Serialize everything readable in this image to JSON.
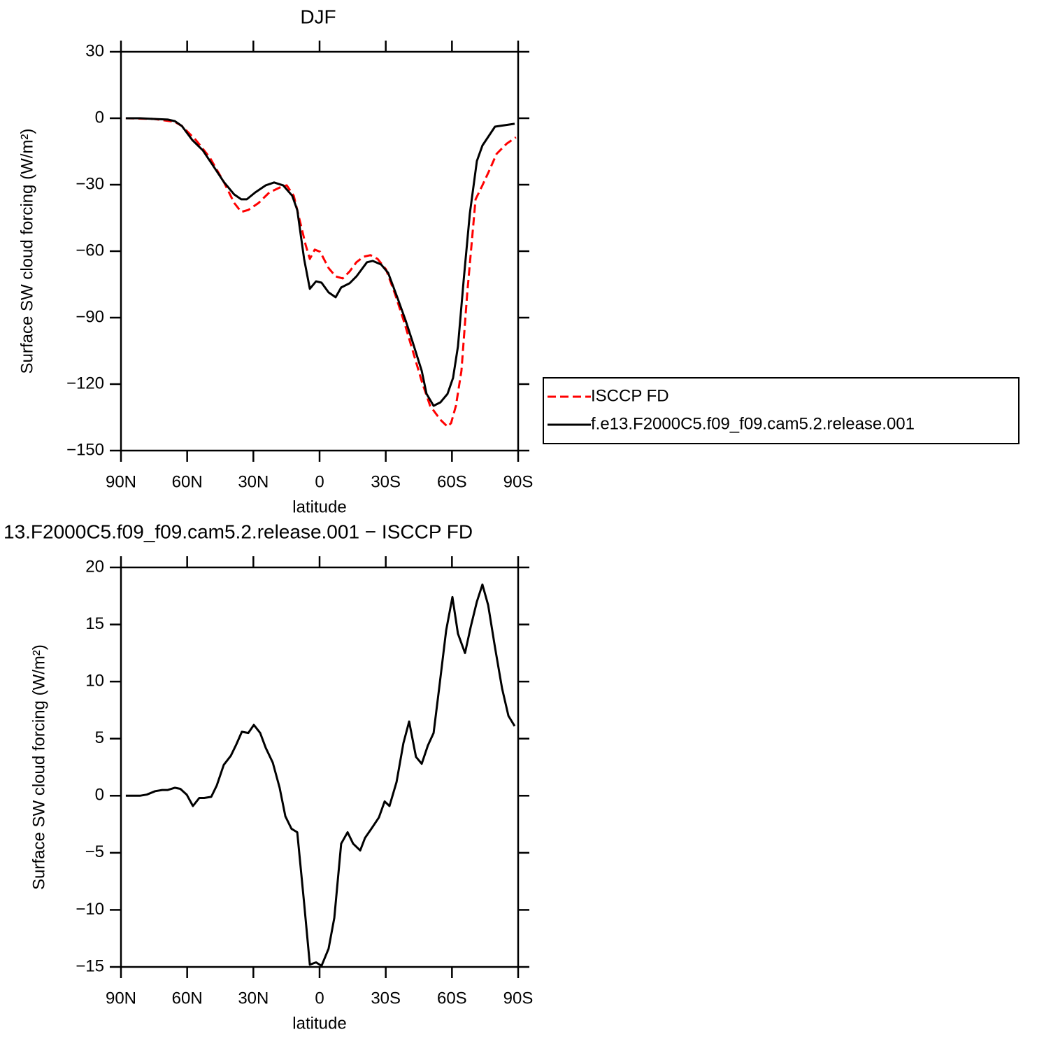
{
  "chart_data": [
    {
      "type": "line",
      "title": "DJF",
      "xlabel": "latitude",
      "ylabel": "Surface SW cloud forcing (W/m²)",
      "xlim": [
        90,
        -90
      ],
      "xticks": [
        {
          "value": 90,
          "label": "90N"
        },
        {
          "value": 60,
          "label": "60N"
        },
        {
          "value": 30,
          "label": "30N"
        },
        0,
        {
          "value": -30,
          "label": "30S"
        },
        {
          "value": -60,
          "label": "60S"
        },
        {
          "value": -90,
          "label": "90S"
        }
      ],
      "ylim": [
        -150,
        30
      ],
      "yticks": [
        {
          "value": -150,
          "label": "−150"
        },
        {
          "value": -120,
          "label": "−120"
        },
        {
          "value": -90,
          "label": "−90"
        },
        {
          "value": -60,
          "label": "−60"
        },
        {
          "value": -30,
          "label": "−30"
        },
        0,
        30
      ],
      "legend": "right",
      "series": [
        {
          "name": "ISCCP FD",
          "color": "#ff0000",
          "line_style": "dashed",
          "x": [
            87.8,
            75.1,
            65.6,
            62.4,
            56.1,
            49.8,
            43.4,
            38.7,
            35.5,
            32.3,
            27.6,
            22.8,
            18.1,
            14.9,
            11.7,
            8.6,
            6.3,
            4.4,
            2.2,
            -0.3,
            -4.1,
            -7.3,
            -10.5,
            -13.6,
            -16.7,
            -19.9,
            -23.1,
            -26.3,
            -30.1,
            -34.2,
            -38.3,
            -42.1,
            -46.3,
            -50.1,
            -54.8,
            -58.0,
            -59.6,
            -61.8,
            -64.3,
            -66.9,
            -70.7,
            -73.8,
            -77.0,
            -80.2,
            -84.9,
            -89.0
          ],
          "values": [
            0,
            -0.3,
            -1.6,
            -3.5,
            -9.8,
            -17.7,
            -28.7,
            -38.2,
            -42.3,
            -41.4,
            -38.2,
            -33.5,
            -31.3,
            -30.3,
            -35,
            -47.7,
            -57.2,
            -63.5,
            -59.3,
            -60.3,
            -67.6,
            -71.4,
            -72.3,
            -69.2,
            -65,
            -62.5,
            -61.8,
            -63.5,
            -68.2,
            -79.3,
            -91.9,
            -104.5,
            -118.7,
            -129.8,
            -136.1,
            -139.2,
            -137.6,
            -129.8,
            -114,
            -79.3,
            -36.6,
            -30.3,
            -23.4,
            -16.1,
            -11.4,
            -8.6
          ]
        },
        {
          "name": "f.e13.F2000C5.f09_f09.cam5.2.release.001",
          "color": "#000000",
          "line_style": "solid",
          "x": [
            87.8,
            81.4,
            75.1,
            68.8,
            65.6,
            62.4,
            57.7,
            52.9,
            48.2,
            43.4,
            38.7,
            35.5,
            33.0,
            29.2,
            24.4,
            20.6,
            16.5,
            12.4,
            10.1,
            7.0,
            4.4,
            1.6,
            -0.9,
            -4.1,
            -7.3,
            -9.8,
            -13.6,
            -16.7,
            -21.5,
            -24.1,
            -27.9,
            -31.1,
            -35.2,
            -39.0,
            -42.1,
            -46.3,
            -48.5,
            -51.7,
            -54.8,
            -58.0,
            -60.5,
            -62.7,
            -65.3,
            -68.1,
            -71.3,
            -73.8,
            -79.5,
            -88.4
          ],
          "values": [
            0,
            0,
            -0.3,
            -0.6,
            -1.3,
            -3.5,
            -9.8,
            -14.5,
            -21.5,
            -28.7,
            -34.4,
            -36.6,
            -36.6,
            -33.5,
            -30.3,
            -29,
            -30.3,
            -35,
            -41.4,
            -63.5,
            -77,
            -73.6,
            -74.2,
            -78.6,
            -80.8,
            -76.4,
            -74.5,
            -71.4,
            -65,
            -64.4,
            -66,
            -69.8,
            -80.8,
            -91.3,
            -100.7,
            -114,
            -124.4,
            -129.8,
            -128.2,
            -124.4,
            -117.2,
            -103,
            -73,
            -43,
            -19.3,
            -12.3,
            -3.8,
            -2.5
          ]
        }
      ]
    },
    {
      "type": "line",
      "title": "13.F2000C5.f09_f09.cam5.2.release.001 − ISCCP FD",
      "xlabel": "latitude",
      "ylabel": "Surface SW cloud forcing (W/m²)",
      "xlim": [
        90,
        -90
      ],
      "xticks": [
        {
          "value": 90,
          "label": "90N"
        },
        {
          "value": 60,
          "label": "60N"
        },
        {
          "value": 30,
          "label": "30N"
        },
        0,
        {
          "value": -30,
          "label": "30S"
        },
        {
          "value": -60,
          "label": "60S"
        },
        {
          "value": -90,
          "label": "90S"
        }
      ],
      "ylim": [
        -15,
        20
      ],
      "yticks": [
        {
          "value": -15,
          "label": "−15"
        },
        {
          "value": -10,
          "label": "−10"
        },
        {
          "value": -5,
          "label": "−5"
        },
        0,
        5,
        10,
        15,
        20
      ],
      "series": [
        {
          "color": "#000000",
          "line_style": "solid",
          "x": [
            87.8,
            81.4,
            78.3,
            74.5,
            71.3,
            68.8,
            65.6,
            63.1,
            60.2,
            57.4,
            54.5,
            52.3,
            49.1,
            46.6,
            43.4,
            40.2,
            37.7,
            35.2,
            32.3,
            29.8,
            26.9,
            24.4,
            21.2,
            18.1,
            15.5,
            12.7,
            10.1,
            7.0,
            4.4,
            1.6,
            -0.9,
            -4.1,
            -6.7,
            -9.8,
            -12.7,
            -15.2,
            -18.4,
            -20.6,
            -23.8,
            -26.9,
            -29.5,
            -31.7,
            -34.9,
            -38.0,
            -40.6,
            -43.7,
            -46.3,
            -49.1,
            -51.7,
            -54.2,
            -57.4,
            -60.2,
            -62.7,
            -65.9,
            -68.5,
            -71.3,
            -73.8,
            -76.4,
            -79.5,
            -82.7,
            -85.6,
            -88.4
          ],
          "values": [
            0,
            0,
            0.1,
            0.4,
            0.5,
            0.5,
            0.7,
            0.6,
            0.1,
            -0.9,
            -0.2,
            -0.2,
            -0.1,
            0.9,
            2.7,
            3.5,
            4.5,
            5.6,
            5.5,
            6.2,
            5.5,
            4.2,
            2.9,
            0.7,
            -1.8,
            -2.9,
            -3.2,
            -9.4,
            -14.8,
            -14.6,
            -14.9,
            -13.4,
            -10.7,
            -4.2,
            -3.2,
            -4.2,
            -4.8,
            -3.7,
            -2.8,
            -1.9,
            -0.5,
            -0.9,
            1.2,
            4.6,
            6.5,
            3.4,
            2.8,
            4.4,
            5.5,
            9.4,
            14.5,
            17.4,
            14.2,
            12.5,
            14.8,
            17,
            18.5,
            16.7,
            13,
            9.4,
            7,
            6.1
          ]
        }
      ]
    }
  ]
}
